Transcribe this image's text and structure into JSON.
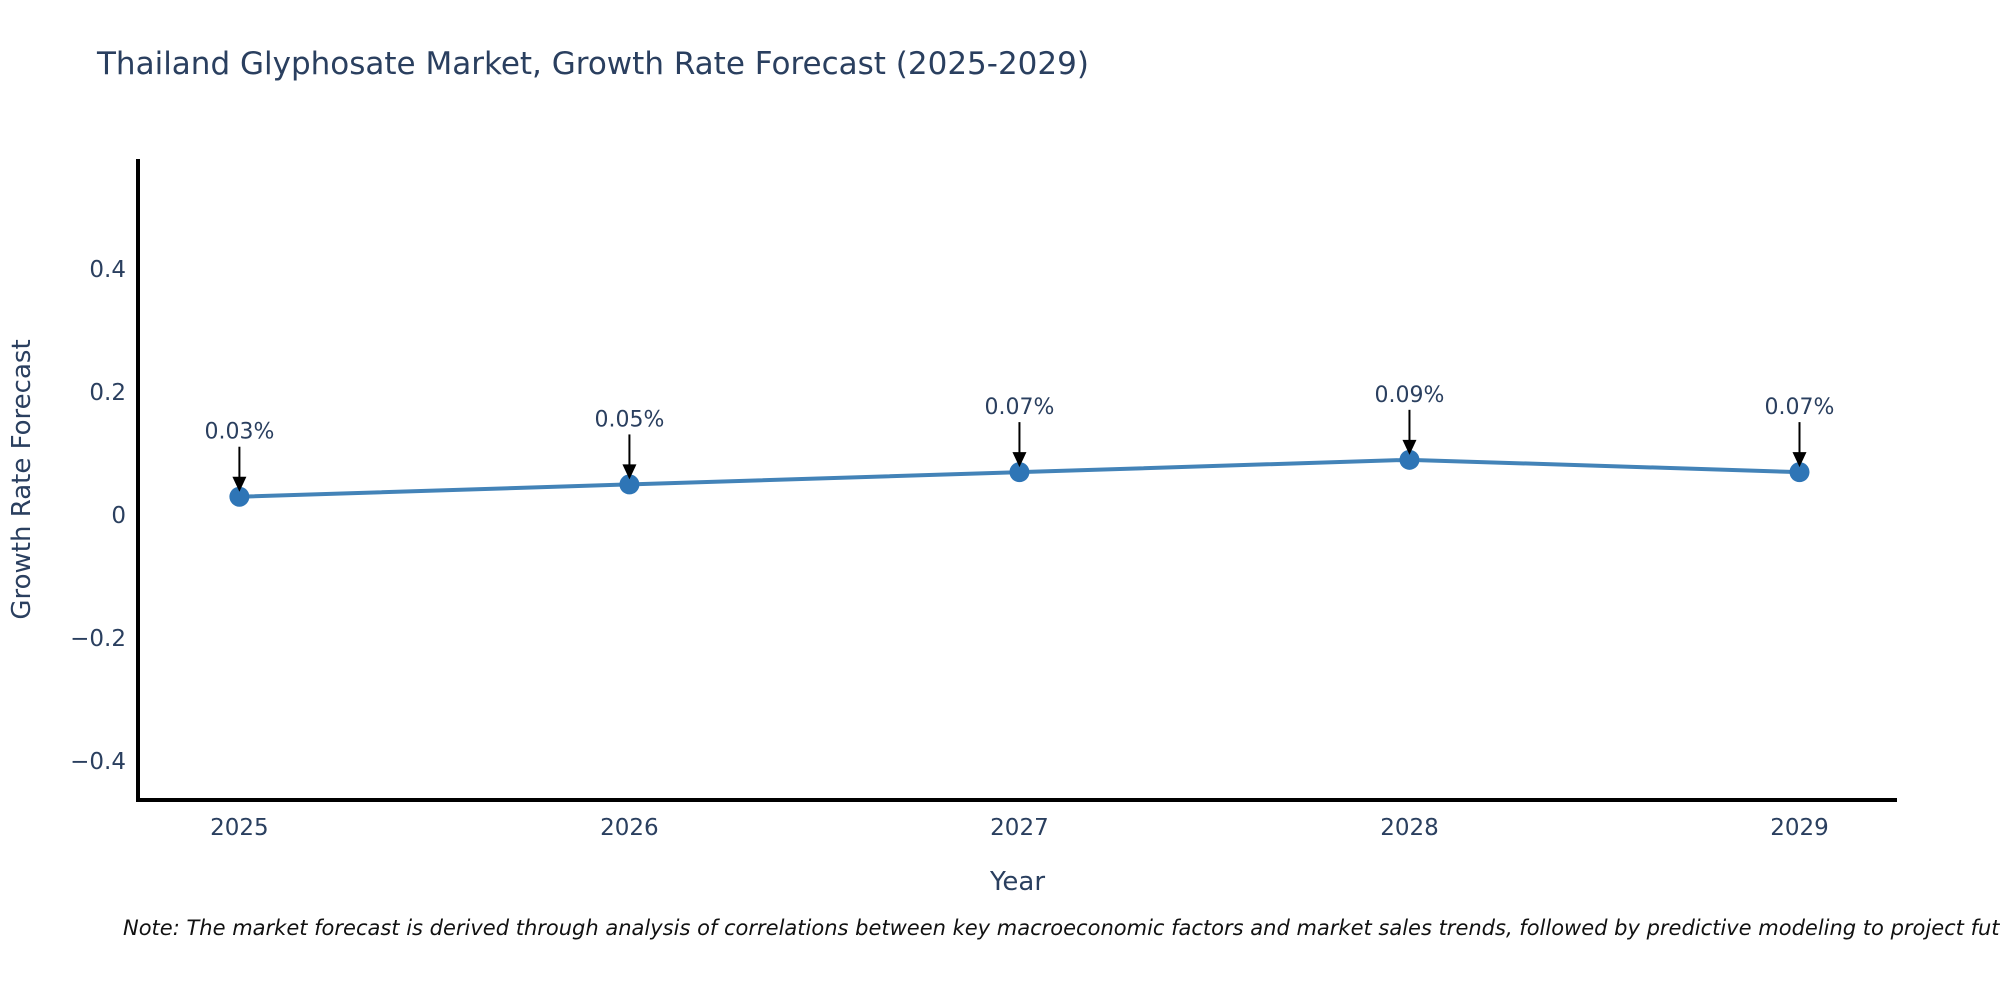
{
  "title": "Thailand Glyphosate Market, Growth Rate Forecast (2025-2029)",
  "note": "Note: The market forecast is derived through analysis of correlations between key macroeconomic factors and market sales trends, followed by predictive modeling to project future sales.",
  "chart_data": {
    "type": "line",
    "title": "Thailand Glyphosate Market, Growth Rate Forecast (2025-2029)",
    "xlabel": "Year",
    "ylabel": "Growth Rate Forecast",
    "categories": [
      2025,
      2026,
      2027,
      2028,
      2029
    ],
    "values": [
      0.03,
      0.05,
      0.07,
      0.09,
      0.07
    ],
    "point_labels": [
      "0.03%",
      "0.05%",
      "0.07%",
      "0.09%",
      "0.07%"
    ],
    "xtick_labels": [
      "2025",
      "2026",
      "2027",
      "2028",
      "2029"
    ],
    "ytick_values": [
      0.4,
      0.2,
      0,
      -0.2,
      -0.4
    ],
    "ytick_labels": [
      "0.4",
      "0.2",
      "0",
      "−0.2",
      "−0.4"
    ],
    "xlim": [
      2024.74,
      2029.25
    ],
    "ylim": [
      -0.463,
      0.579
    ],
    "grid": false,
    "legend": "none",
    "colors": {
      "line": "#4383b8",
      "marker": "#2e75b6",
      "text": "#2a3f5f",
      "axis": "#000000",
      "annotation_arrow": "#000000"
    }
  }
}
